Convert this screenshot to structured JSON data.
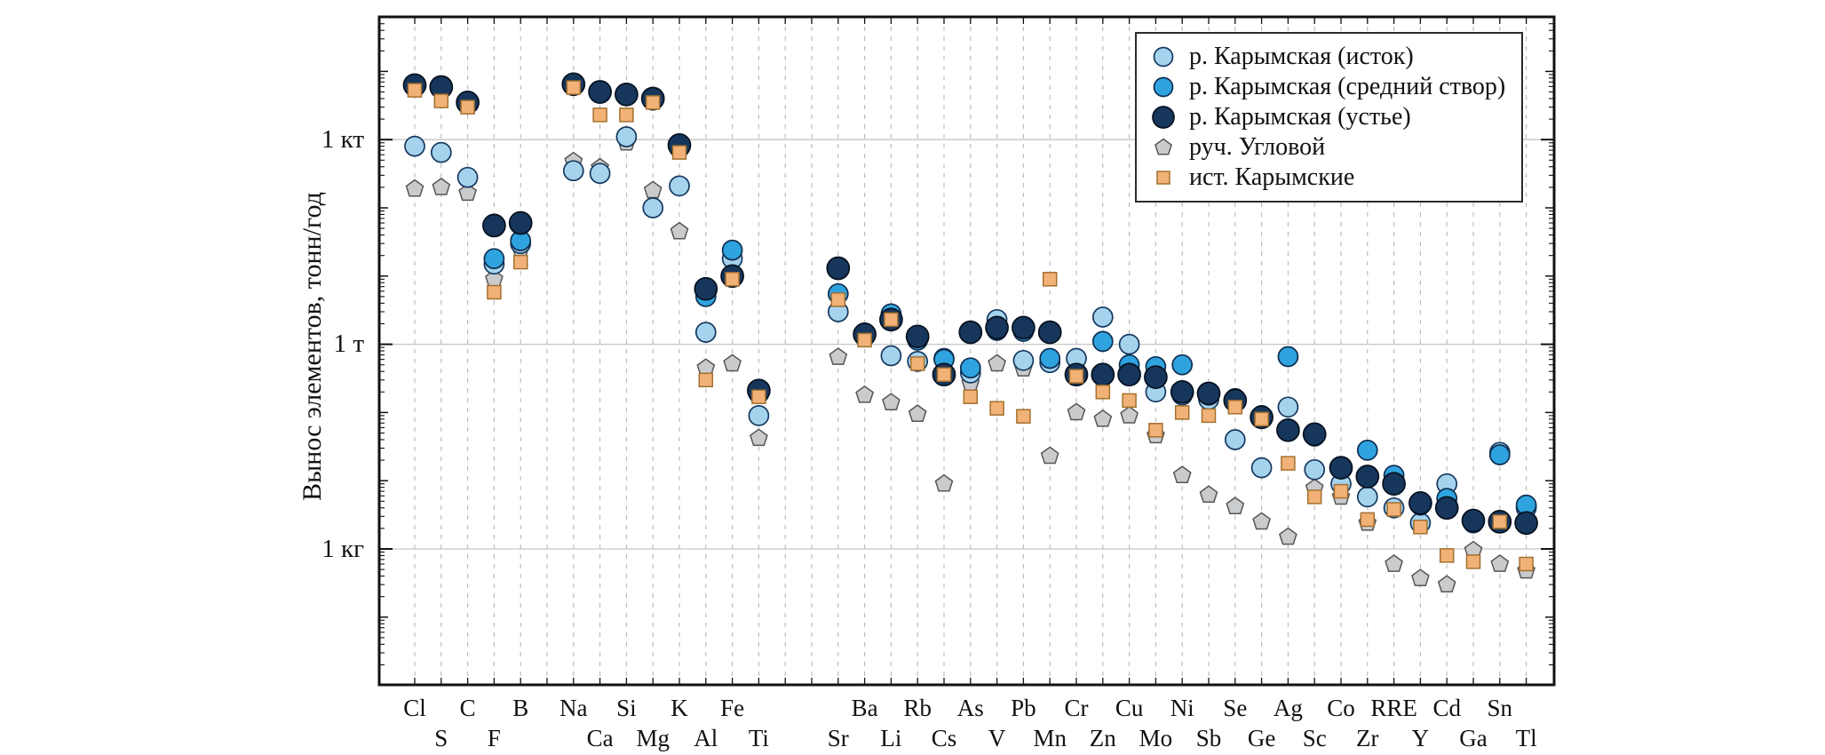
{
  "figure": {
    "background": "#ffffff"
  },
  "chart_data": {
    "type": "scatter",
    "yscale": "log",
    "ylabel": "Вынос элементов, тонн/год",
    "yunit": "тонн/год",
    "ytick_labels": [
      "1 кт",
      "1 т",
      "1 кг"
    ],
    "ytick_values_tonnes": [
      1000,
      1,
      0.001
    ],
    "ylim_tonnes": [
      1e-05,
      63000
    ],
    "grid": {
      "horizontal": "solid",
      "vertical": "dashed"
    },
    "legend_position": "top-right",
    "categories": [
      "Cl",
      "S",
      "C",
      "F",
      "B",
      "Na",
      "Ca",
      "Si",
      "Mg",
      "K",
      "Al",
      "Fe",
      "Ti",
      "Sr",
      "Ba",
      "Li",
      "Rb",
      "Cs",
      "As",
      "V",
      "Pb",
      "Mn",
      "Cr",
      "Zn",
      "Cu",
      "Mo",
      "Ni",
      "Sb",
      "Se",
      "Ge",
      "Ag",
      "Sc",
      "Co",
      "Zr",
      "RRE",
      "Y",
      "Cd",
      "Ga",
      "Sn",
      "Tl"
    ],
    "category_label_rows": [
      0,
      1,
      0,
      1,
      0,
      0,
      1,
      0,
      1,
      0,
      1,
      0,
      1,
      1,
      0,
      1,
      0,
      1,
      0,
      1,
      0,
      1,
      0,
      1,
      0,
      1,
      0,
      1,
      0,
      1,
      0,
      1,
      0,
      1,
      0,
      1,
      0,
      1,
      0,
      1
    ],
    "series": [
      {
        "name": "р. Карымская (исток)",
        "marker": "circle",
        "color": "#A5D3EE",
        "values": [
          800,
          650,
          280,
          15,
          30,
          350,
          320,
          1100,
          100,
          210,
          1.5,
          18,
          0.09,
          3.0,
          1.45,
          0.68,
          0.56,
          0.62,
          0.38,
          2.3,
          0.58,
          0.54,
          0.62,
          2.5,
          1.0,
          0.2,
          0.18,
          0.155,
          0.04,
          0.0155,
          0.12,
          0.0145,
          0.009,
          0.0058,
          0.004,
          0.0024,
          0.009,
          0.0024,
          0.026,
          0.004
        ]
      },
      {
        "name": "р. Карымская (средний створ)",
        "marker": "circle",
        "color": "#2FA3DF",
        "values": [
          6000,
          5600,
          3400,
          18,
          33,
          6300,
          4800,
          4400,
          3800,
          760,
          5.0,
          24,
          0.19,
          5.5,
          1.3,
          2.8,
          1.15,
          0.6,
          0.45,
          1.6,
          1.55,
          0.62,
          0.35,
          1.1,
          0.5,
          0.47,
          0.5,
          0.18,
          0.16,
          0.09,
          0.66,
          0.045,
          0.016,
          0.028,
          0.012,
          0.0044,
          0.0055,
          0.0025,
          0.024,
          0.0044
        ]
      },
      {
        "name": "р. Карымская (устье)",
        "marker": "circle",
        "color": "#16365C",
        "values": [
          6300,
          5900,
          3500,
          55,
          60,
          6500,
          5000,
          4600,
          4000,
          830,
          6.5,
          10,
          0.21,
          13,
          1.4,
          2.3,
          1.3,
          0.36,
          1.5,
          1.75,
          1.75,
          1.5,
          0.36,
          0.36,
          0.36,
          0.33,
          0.2,
          0.19,
          0.15,
          0.085,
          0.055,
          0.048,
          0.0155,
          0.0115,
          0.009,
          0.0047,
          0.004,
          0.0026,
          0.0025,
          0.0024
        ]
      },
      {
        "name": "руч. Угловой",
        "marker": "pentagon",
        "color": "#C9CBCD",
        "values": [
          190,
          200,
          165,
          9,
          25,
          480,
          390,
          900,
          180,
          45,
          0.45,
          0.52,
          0.042,
          0.65,
          0.18,
          0.14,
          0.095,
          0.009,
          0.27,
          0.52,
          0.44,
          0.023,
          0.1,
          0.08,
          0.09,
          0.046,
          0.012,
          0.0062,
          0.0042,
          0.0025,
          0.0015,
          0.0078,
          0.0058,
          0.0024,
          0.0006,
          0.00037,
          0.0003,
          0.00095,
          0.0006,
          0.00048
        ]
      },
      {
        "name": "ист. Карымские",
        "marker": "square",
        "color": "#F2B277",
        "values": [
          5300,
          3700,
          3000,
          5.8,
          16,
          5800,
          2300,
          2300,
          3500,
          650,
          0.3,
          9,
          0.17,
          4.5,
          1.15,
          2.3,
          0.52,
          0.36,
          0.17,
          0.115,
          0.088,
          9,
          0.34,
          0.2,
          0.15,
          0.055,
          0.1,
          0.09,
          0.12,
          0.08,
          0.018,
          0.0058,
          0.007,
          0.0027,
          0.0038,
          0.0021,
          0.0008,
          0.00065,
          0.0025,
          0.0006
        ]
      }
    ]
  }
}
